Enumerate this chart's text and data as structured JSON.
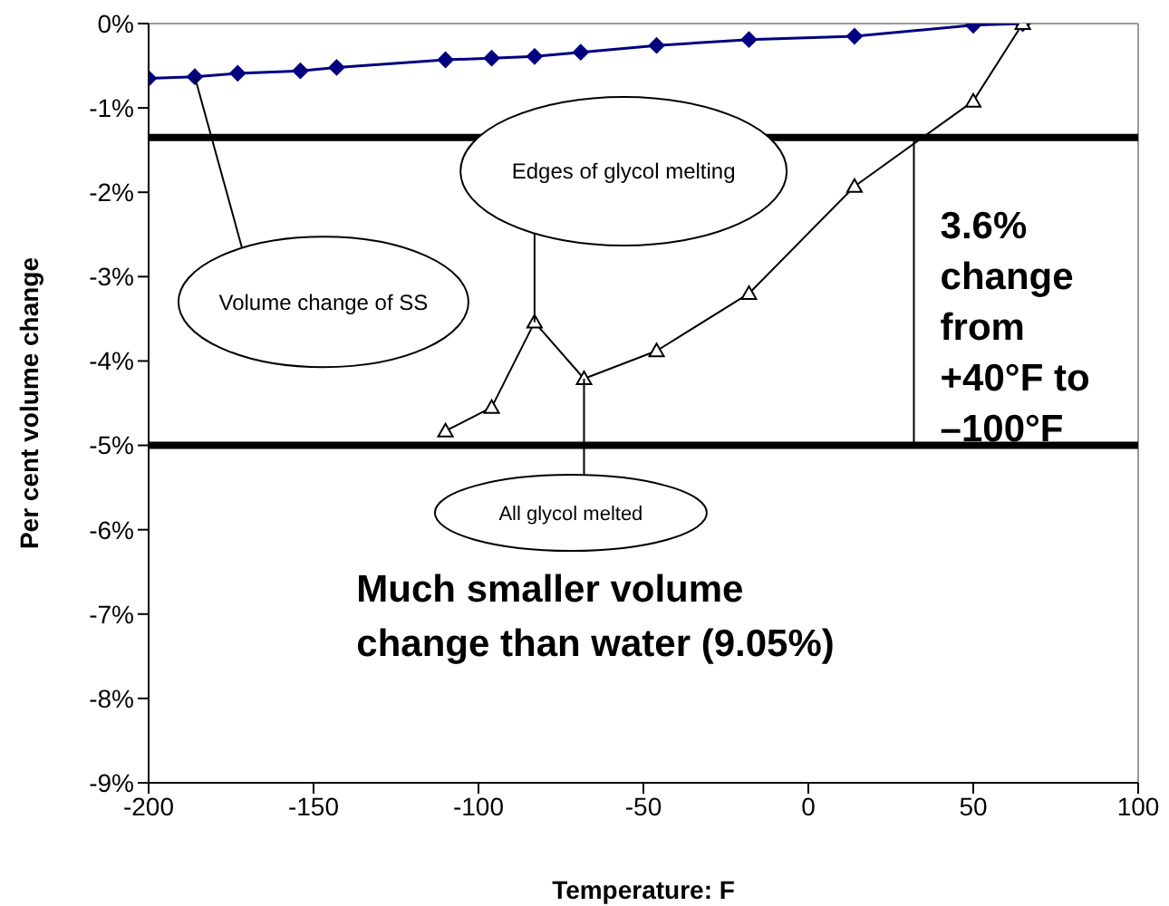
{
  "chart_data": {
    "type": "line",
    "xlabel": "Temperature: F",
    "ylabel": "Per cent volume change",
    "xlim": [
      -200,
      100
    ],
    "xticks": [
      -200,
      -150,
      -100,
      -50,
      0,
      50,
      100
    ],
    "ylim": [
      -9,
      0
    ],
    "yticks": [
      {
        "value": 0,
        "label": "0%"
      },
      {
        "value": -1,
        "label": "-1%"
      },
      {
        "value": -2,
        "label": "-2%"
      },
      {
        "value": -3,
        "label": "-3%"
      },
      {
        "value": -4,
        "label": "-4%"
      },
      {
        "value": -5,
        "label": "-5%"
      },
      {
        "value": -6,
        "label": "-6%"
      },
      {
        "value": -7,
        "label": "-7%"
      },
      {
        "value": -8,
        "label": "-8%"
      },
      {
        "value": -9,
        "label": "-9%"
      }
    ],
    "grid": false,
    "legend": false,
    "series": [
      {
        "color": "#000080",
        "marker": "diamond",
        "x": [
          -200,
          -186,
          -173,
          -154,
          -143,
          -110,
          -96,
          -83,
          -69,
          -46,
          -18,
          14,
          50,
          65
        ],
        "values": [
          -0.65,
          -0.63,
          -0.59,
          -0.56,
          -0.52,
          -0.43,
          -0.41,
          -0.39,
          -0.34,
          -0.26,
          -0.19,
          -0.15,
          -0.02,
          0
        ]
      },
      {
        "color": "#000000",
        "marker": "triangle",
        "x": [
          -110,
          -96,
          -83,
          -68,
          -46,
          -18,
          14,
          50,
          65
        ],
        "values": [
          -4.83,
          -4.55,
          -3.54,
          -4.21,
          -3.88,
          -3.2,
          -1.93,
          -0.92,
          0
        ]
      }
    ],
    "ref_lines": [
      {
        "axis": "y",
        "value": -1.35,
        "color": "#000000"
      },
      {
        "axis": "y",
        "value": -5,
        "color": "#000000"
      }
    ],
    "annotations": [
      {
        "text": "Volume change of SS",
        "x": -186,
        "y": -0.63
      },
      {
        "text": "Edges of glycol melting",
        "x": -83,
        "y": -3.54
      },
      {
        "text": "All glycol melted",
        "x": -68,
        "y": -4.21
      },
      {
        "text": "3.6% change from +40°F to –100°F",
        "x": 32,
        "y": -1.35
      },
      "Much smaller volume change than water (9.05%)"
    ]
  }
}
